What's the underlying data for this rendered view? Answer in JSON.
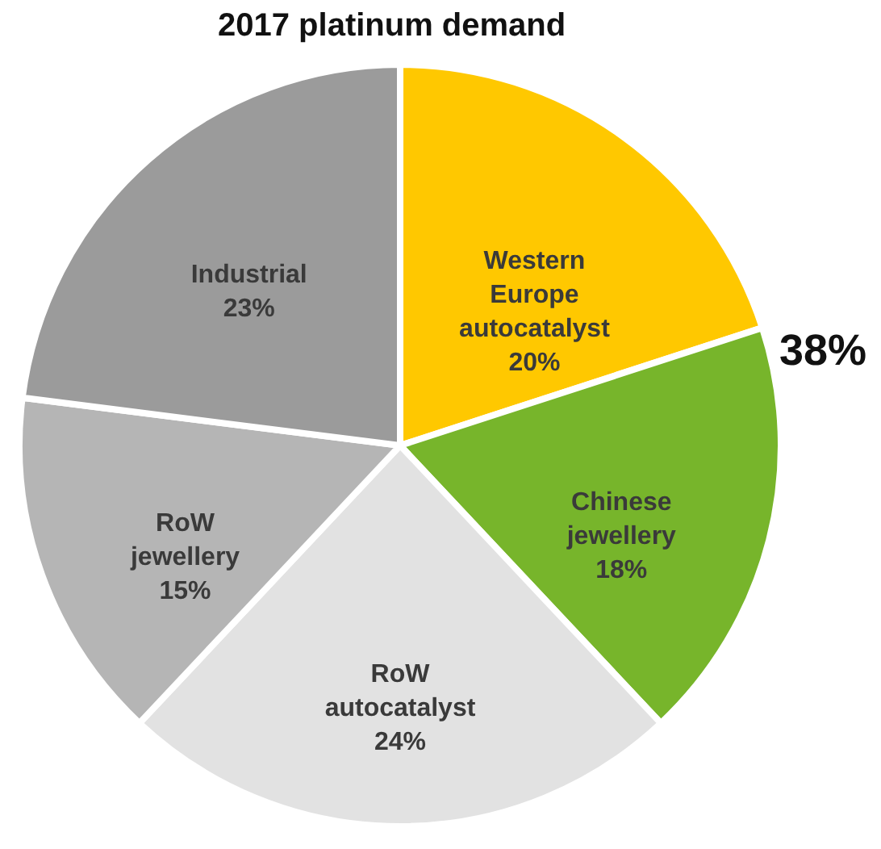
{
  "chart_data": {
    "type": "pie",
    "title": "2017 platinum demand",
    "categories": [
      "Western Europe autocatalyst",
      "Chinese jewellery",
      "RoW autocatalyst",
      "RoW jewellery",
      "Industrial"
    ],
    "values": [
      20,
      18,
      24,
      15,
      23
    ],
    "value_labels": [
      "20%",
      "18%",
      "24%",
      "15%",
      "23%"
    ],
    "colors": [
      "#ffc800",
      "#77b52b",
      "#e2e2e2",
      "#b5b5b5",
      "#9b9b9b"
    ],
    "annotations": [
      "38%"
    ],
    "legend": false
  }
}
